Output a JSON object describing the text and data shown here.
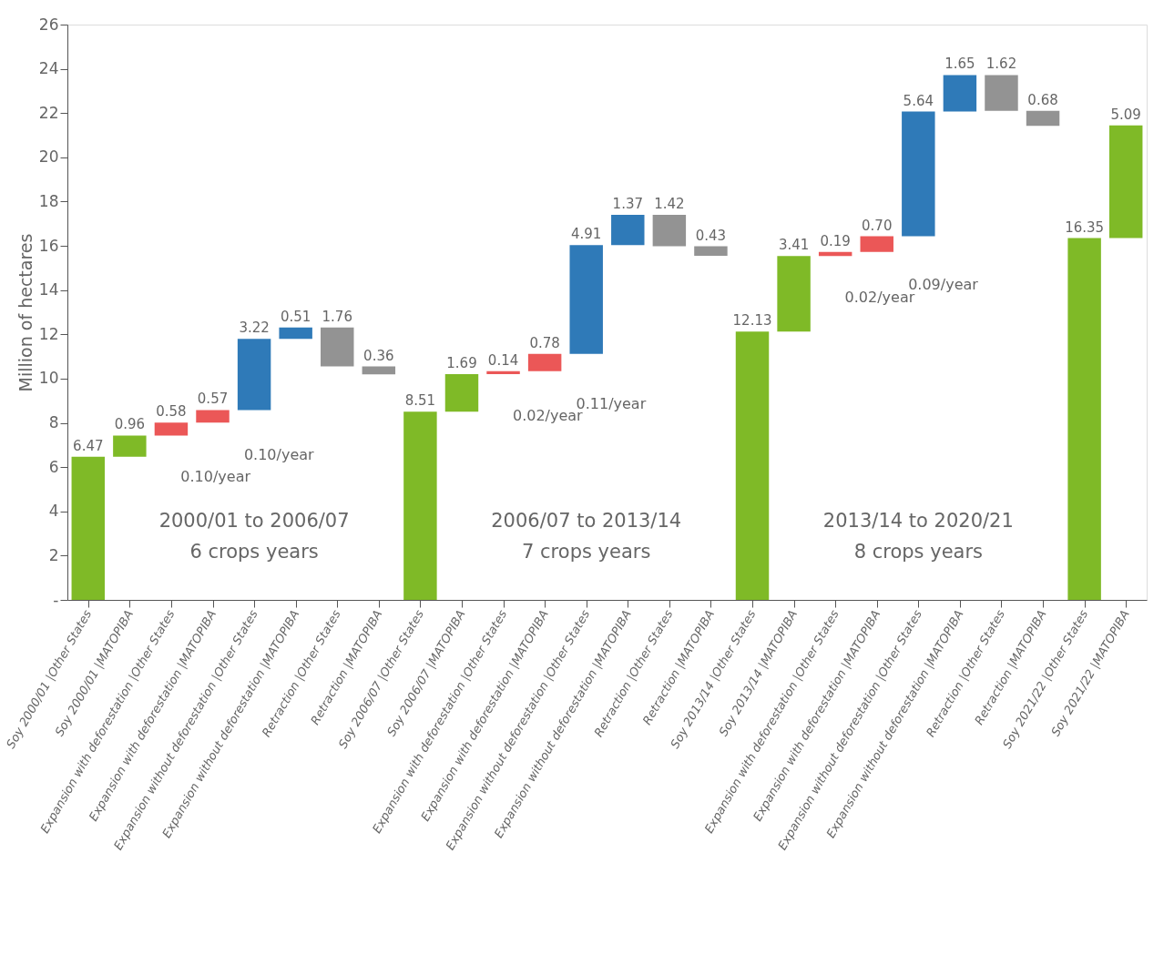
{
  "chart_data": {
    "type": "bar",
    "ylabel": "Million of hectares",
    "categories": [
      "Soy 2000/01 |Other States",
      "Soy 2000/01 |MATOPIBA",
      "Expansion with deforestation |Other States",
      "Expansion with deforestation |MATOPIBA",
      "Expansion without deforestation |Other States",
      "Expansion without deforestation |MATOPIBA",
      "Retraction |Other States",
      "Retraction |MATOPIBA",
      "Soy 2006/07 |Other States",
      "Soy 2006/07 |MATOPIBA",
      "Expansion with deforestation |Other States",
      "Expansion with deforestation |MATOPIBA",
      "Expansion without deforestation |Other States",
      "Expansion without deforestation |MATOPIBA",
      "Retraction |Other States",
      "Retraction |MATOPIBA",
      "Soy 2013/14 |Other States",
      "Soy 2013/14 |MATOPIBA",
      "Expansion with deforestation |Other States",
      "Expansion with deforestation |MATOPIBA",
      "Expansion without deforestation |Other States",
      "Expansion without deforestation |MATOPIBA",
      "Retraction |Other States",
      "Retraction |MATOPIBA",
      "Soy 2021/22 |Other States",
      "Soy 2021/22 |MATOPIBA"
    ],
    "values": [
      6.47,
      0.96,
      0.58,
      0.57,
      3.22,
      0.51,
      1.76,
      0.36,
      8.51,
      1.69,
      0.14,
      0.78,
      4.91,
      1.37,
      1.42,
      0.43,
      12.13,
      3.41,
      0.19,
      0.7,
      5.64,
      1.65,
      1.62,
      0.68,
      16.35,
      5.09
    ],
    "value_labels": [
      "6.47",
      "0.96",
      "0.58",
      "0.57",
      "3.22",
      "0.51",
      "1.76",
      "0.36",
      "8.51",
      "1.69",
      "0.14",
      "0.78",
      "4.91",
      "1.37",
      "1.42",
      "0.43",
      "12.13",
      "3.41",
      "0.19",
      "0.70",
      "5.64",
      "1.65",
      "1.62",
      "0.68",
      "16.35",
      "5.09"
    ],
    "base": [
      0,
      6.47,
      7.43,
      8.01,
      8.58,
      11.8,
      10.55,
      10.19,
      0,
      8.51,
      10.2,
      10.34,
      11.12,
      16.03,
      15.98,
      15.55,
      0,
      12.13,
      15.54,
      15.73,
      16.43,
      22.07,
      22.1,
      21.42,
      0,
      16.35
    ],
    "colors": [
      "#7fba27",
      "#7fba27",
      "#eb5757",
      "#eb5757",
      "#2f7ab8",
      "#2f7ab8",
      "#939393",
      "#939393",
      "#7fba27",
      "#7fba27",
      "#eb5757",
      "#eb5757",
      "#2f7ab8",
      "#2f7ab8",
      "#939393",
      "#939393",
      "#7fba27",
      "#7fba27",
      "#eb5757",
      "#eb5757",
      "#2f7ab8",
      "#2f7ab8",
      "#939393",
      "#939393",
      "#7fba27",
      "#7fba27"
    ],
    "ylim": [
      0,
      26
    ],
    "yticks": [
      {
        "value": 0,
        "label": "-"
      },
      2,
      4,
      6,
      8,
      10,
      12,
      14,
      16,
      18,
      20,
      22,
      24,
      26
    ],
    "grid": false,
    "annotations": [
      "0.10/year",
      "0.10/year",
      "0.02/year",
      "0.11/year",
      "0.02/year",
      "0.09/year",
      "2000/01 to 2006/07\n6 crops years",
      "2006/07 to 2013/14\n7 crops years",
      "2013/14 to 2020/21\n8 crops years"
    ]
  }
}
